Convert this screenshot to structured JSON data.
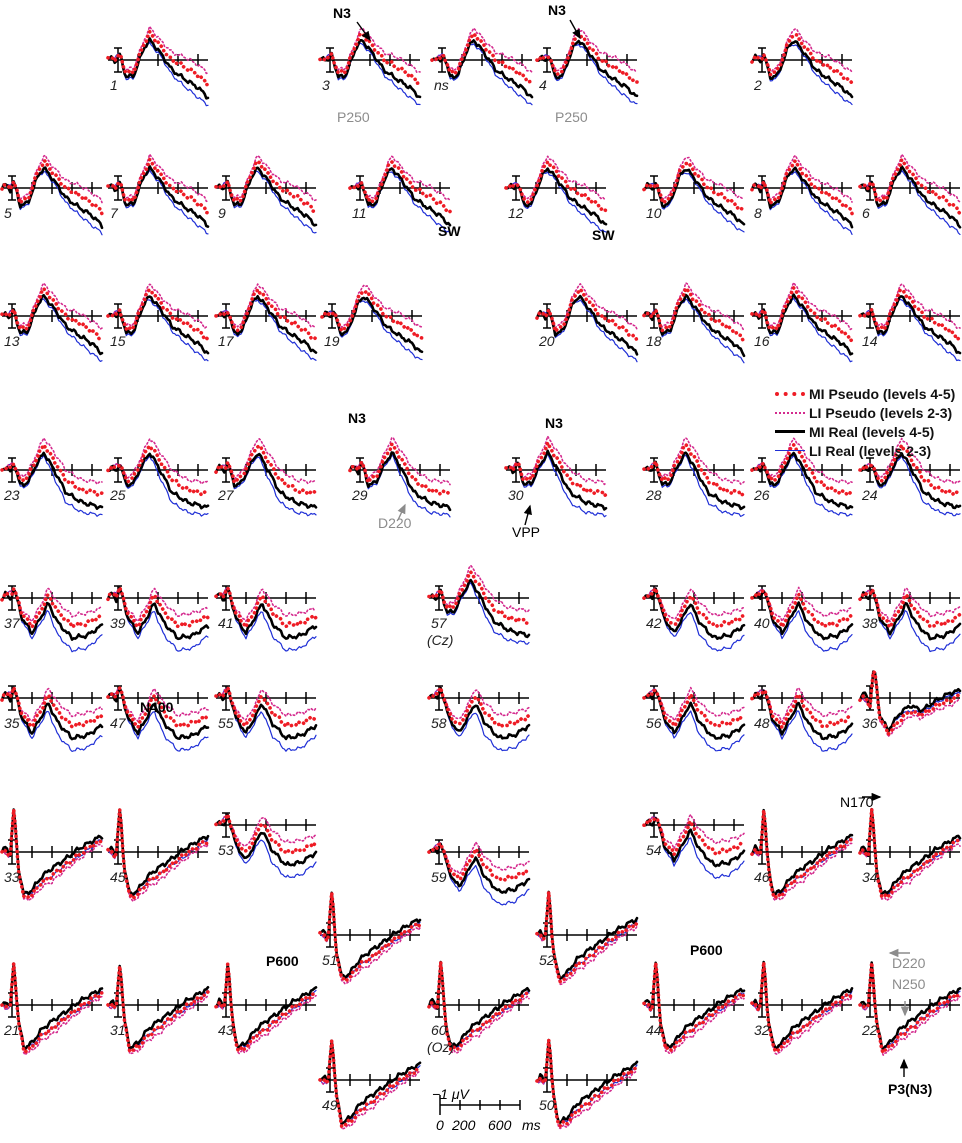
{
  "chart_data": {
    "type": "line",
    "legend": {
      "placement": "right",
      "entries": [
        {
          "name": "MI Pseudo (levels 4-5)",
          "color": "#ee1c25",
          "style": "dotted-thick"
        },
        {
          "name": "LI Pseudo (levels 2-3)",
          "color": "#d42a8e",
          "style": "dotted-thin"
        },
        {
          "name": "MI Real (levels 4-5)",
          "color": "#000000",
          "style": "solid-thick"
        },
        {
          "name": "LI Real (levels 2-3)",
          "color": "#1f2fd6",
          "style": "solid-thin"
        }
      ]
    },
    "scale_bar": {
      "amplitude": "−1 μV",
      "ticks": [
        "0",
        "200",
        "600"
      ],
      "unit": "ms"
    },
    "electrodes": [
      {
        "label": "1",
        "type": "F"
      },
      {
        "label": "3",
        "type": "F"
      },
      {
        "label": "ns",
        "type": "F"
      },
      {
        "label": "4",
        "type": "F"
      },
      {
        "label": "2",
        "type": "F"
      },
      {
        "label": "5",
        "type": "F"
      },
      {
        "label": "7",
        "type": "F"
      },
      {
        "label": "9",
        "type": "F"
      },
      {
        "label": "11",
        "type": "F"
      },
      {
        "label": "12",
        "type": "F"
      },
      {
        "label": "10",
        "type": "F"
      },
      {
        "label": "8",
        "type": "F"
      },
      {
        "label": "6",
        "type": "F"
      },
      {
        "label": "13",
        "type": "F"
      },
      {
        "label": "15",
        "type": "F"
      },
      {
        "label": "17",
        "type": "F"
      },
      {
        "label": "19",
        "type": "F"
      },
      {
        "label": "20",
        "type": "F"
      },
      {
        "label": "18",
        "type": "F"
      },
      {
        "label": "16",
        "type": "F"
      },
      {
        "label": "14",
        "type": "F"
      },
      {
        "label": "23",
        "type": "C"
      },
      {
        "label": "25",
        "type": "C"
      },
      {
        "label": "27",
        "type": "C"
      },
      {
        "label": "29",
        "type": "C"
      },
      {
        "label": "30",
        "type": "C"
      },
      {
        "label": "28",
        "type": "C"
      },
      {
        "label": "26",
        "type": "C"
      },
      {
        "label": "24",
        "type": "C"
      },
      {
        "label": "37",
        "type": "P"
      },
      {
        "label": "39",
        "type": "P"
      },
      {
        "label": "41",
        "type": "P"
      },
      {
        "label": "57",
        "sub": "(Cz)",
        "type": "C"
      },
      {
        "label": "42",
        "type": "P"
      },
      {
        "label": "40",
        "type": "P"
      },
      {
        "label": "38",
        "type": "P"
      },
      {
        "label": "35",
        "type": "P"
      },
      {
        "label": "47",
        "type": "P"
      },
      {
        "label": "55",
        "type": "P"
      },
      {
        "label": "58",
        "type": "P"
      },
      {
        "label": "56",
        "type": "P"
      },
      {
        "label": "48",
        "type": "P"
      },
      {
        "label": "36",
        "type": "T"
      },
      {
        "label": "33",
        "type": "O"
      },
      {
        "label": "45",
        "type": "O"
      },
      {
        "label": "53",
        "type": "P"
      },
      {
        "label": "59",
        "type": "P"
      },
      {
        "label": "54",
        "type": "P"
      },
      {
        "label": "46",
        "type": "O"
      },
      {
        "label": "34",
        "type": "O"
      },
      {
        "label": "51",
        "type": "O"
      },
      {
        "label": "52",
        "type": "O"
      },
      {
        "label": "21",
        "type": "O"
      },
      {
        "label": "31",
        "type": "O"
      },
      {
        "label": "43",
        "type": "O"
      },
      {
        "label": "60",
        "sub": "(Oz)",
        "type": "O"
      },
      {
        "label": "44",
        "type": "O"
      },
      {
        "label": "32",
        "type": "O"
      },
      {
        "label": "22",
        "type": "O"
      },
      {
        "label": "49",
        "type": "O"
      },
      {
        "label": "50",
        "type": "O"
      }
    ],
    "annotations": [
      {
        "text": "N3",
        "style": "bold"
      },
      {
        "text": "N3",
        "style": "bold"
      },
      {
        "text": "P250",
        "style": "gray"
      },
      {
        "text": "P250",
        "style": "gray"
      },
      {
        "text": "SW",
        "style": "bold"
      },
      {
        "text": "SW",
        "style": "bold"
      },
      {
        "text": "N3",
        "style": "bold"
      },
      {
        "text": "N3",
        "style": "bold"
      },
      {
        "text": "D220",
        "style": "gray"
      },
      {
        "text": "VPP",
        "style": "bold-normal"
      },
      {
        "text": "N400",
        "style": "bold"
      },
      {
        "text": "N170",
        "style": "plain"
      },
      {
        "text": "P600",
        "style": "bold"
      },
      {
        "text": "P600",
        "style": "bold"
      },
      {
        "text": "D220",
        "style": "gray"
      },
      {
        "text": "N250",
        "style": "gray"
      },
      {
        "text": "P3(N3)",
        "style": "bold"
      }
    ]
  },
  "colors": {
    "mi_pseudo": "#ee1c25",
    "li_pseudo": "#d42a8e",
    "mi_real": "#000000",
    "li_real": "#1f2fd6",
    "gray_ann": "#8c8c8c"
  }
}
